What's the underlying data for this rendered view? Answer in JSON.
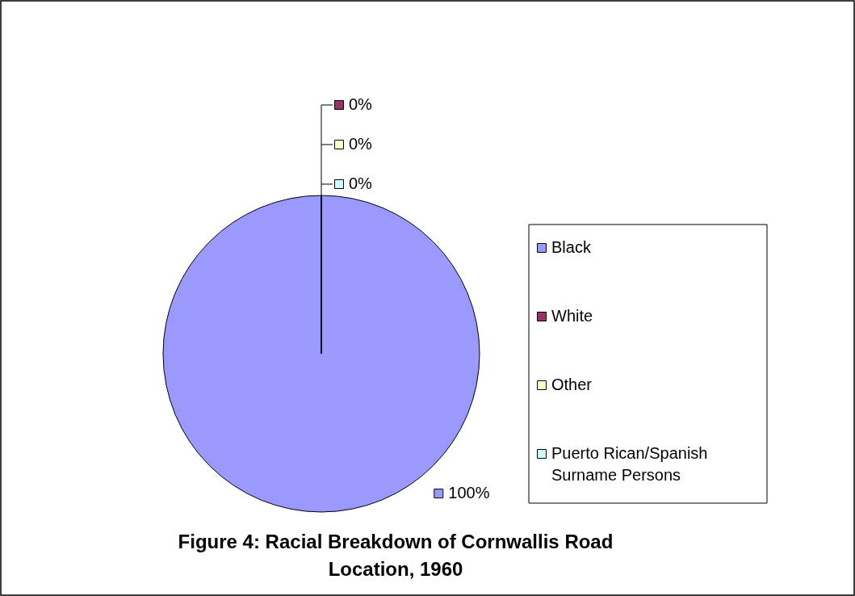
{
  "chart_data": {
    "type": "pie",
    "title": "Figure 4: Racial Breakdown of Cornwallis Road Location, 1960",
    "categories": [
      "Black",
      "White",
      "Other",
      "Puerto Rican/Spanish Surname Persons"
    ],
    "values": [
      100,
      0,
      0,
      0
    ],
    "colors": [
      "#9999ff",
      "#993366",
      "#ffffcc",
      "#ccffff"
    ],
    "value_labels": [
      "100%",
      "0%",
      "0%",
      "0%"
    ],
    "legend": "right"
  }
}
